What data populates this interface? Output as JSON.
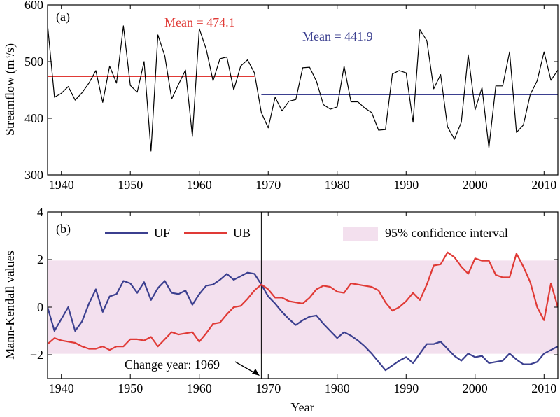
{
  "colors": {
    "series_black": "#000000",
    "red": "#e03a36",
    "blue": "#3b3f8f",
    "confidence": "#f3e0ee"
  },
  "chart_data": [
    {
      "panel_label": "(a)",
      "type": "line",
      "ylabel": "Streamflow (m³/s)",
      "xlim": [
        1938,
        2012
      ],
      "ylim": [
        300,
        600
      ],
      "xticks": [
        1940,
        1950,
        1960,
        1970,
        1980,
        1990,
        2000,
        2010
      ],
      "yticks": [
        300,
        400,
        500,
        600
      ],
      "series": [
        {
          "name": "",
          "color": "#000000",
          "x": [
            1938,
            1939,
            1940,
            1941,
            1942,
            1943,
            1944,
            1945,
            1946,
            1947,
            1948,
            1949,
            1950,
            1951,
            1952,
            1953,
            1954,
            1955,
            1956,
            1957,
            1958,
            1959,
            1960,
            1961,
            1962,
            1963,
            1964,
            1965,
            1966,
            1967,
            1968,
            1969,
            1970,
            1971,
            1972,
            1973,
            1974,
            1975,
            1976,
            1977,
            1978,
            1979,
            1980,
            1981,
            1982,
            1983,
            1984,
            1985,
            1986,
            1987,
            1988,
            1989,
            1990,
            1991,
            1992,
            1993,
            1994,
            1995,
            1996,
            1997,
            1998,
            1999,
            2000,
            2001,
            2002,
            2003,
            2004,
            2005,
            2006,
            2007,
            2008,
            2009,
            2010,
            2011,
            2012
          ],
          "y": [
            565,
            437,
            444,
            456,
            432,
            445,
            462,
            484,
            428,
            492,
            462,
            563,
            458,
            446,
            500,
            342,
            547,
            510,
            434,
            460,
            485,
            368,
            558,
            522,
            466,
            505,
            508,
            450,
            492,
            503,
            480,
            410,
            383,
            437,
            413,
            430,
            433,
            489,
            490,
            465,
            424,
            416,
            420,
            492,
            429,
            429,
            418,
            410,
            379,
            380,
            478,
            484,
            480,
            393,
            556,
            537,
            452,
            477,
            385,
            363,
            393,
            512,
            415,
            454,
            348,
            457,
            457,
            517,
            375,
            388,
            442,
            466,
            517,
            467,
            485
          ]
        }
      ],
      "mean_lines": [
        {
          "label": "Mean = 474.1",
          "value": 474.1,
          "x_start": 1938,
          "x_end": 1968,
          "color": "#e03a36"
        },
        {
          "label": "Mean = 441.9",
          "value": 441.9,
          "x_start": 1969,
          "x_end": 2012,
          "color": "#3b3f8f"
        }
      ]
    },
    {
      "panel_label": "(b)",
      "type": "line",
      "xlabel": "Year",
      "ylabel": "Mann-Kendall values",
      "xlim": [
        1938,
        2012
      ],
      "ylim": [
        -3,
        4
      ],
      "xticks": [
        1940,
        1950,
        1960,
        1970,
        1980,
        1990,
        2000,
        2010
      ],
      "ytick_labels": [
        "−2",
        "0",
        "2",
        "4"
      ],
      "yticks": [
        -2,
        0,
        2,
        4
      ],
      "confidence_band": {
        "label": "95% confidence interval",
        "lower": -1.96,
        "upper": 1.96
      },
      "annotation": {
        "text": "Change year: 1969",
        "x": 1969
      },
      "legend": "top",
      "series": [
        {
          "name": "UF",
          "color": "#3b3f8f",
          "x": [
            1938,
            1939,
            1940,
            1941,
            1942,
            1943,
            1944,
            1945,
            1946,
            1947,
            1948,
            1949,
            1950,
            1951,
            1952,
            1953,
            1954,
            1955,
            1956,
            1957,
            1958,
            1959,
            1960,
            1961,
            1962,
            1963,
            1964,
            1965,
            1966,
            1967,
            1968,
            1969,
            1970,
            1971,
            1972,
            1973,
            1974,
            1975,
            1976,
            1977,
            1978,
            1979,
            1980,
            1981,
            1982,
            1983,
            1984,
            1985,
            1986,
            1987,
            1988,
            1989,
            1990,
            1991,
            1992,
            1993,
            1994,
            1995,
            1996,
            1997,
            1998,
            1999,
            2000,
            2001,
            2002,
            2003,
            2004,
            2005,
            2006,
            2007,
            2008,
            2009,
            2010,
            2011,
            2012
          ],
          "y": [
            0.0,
            -1.0,
            -0.5,
            0.0,
            -1.0,
            -0.6,
            0.15,
            0.75,
            -0.2,
            0.45,
            0.55,
            1.1,
            1.0,
            0.6,
            1.05,
            0.3,
            0.8,
            1.1,
            0.6,
            0.55,
            0.7,
            0.1,
            0.55,
            0.9,
            0.95,
            1.15,
            1.4,
            1.15,
            1.3,
            1.45,
            1.4,
            0.95,
            0.45,
            0.15,
            -0.2,
            -0.5,
            -0.75,
            -0.55,
            -0.4,
            -0.35,
            -0.7,
            -1.0,
            -1.3,
            -1.05,
            -1.2,
            -1.4,
            -1.65,
            -1.95,
            -2.3,
            -2.65,
            -2.45,
            -2.25,
            -2.1,
            -2.35,
            -1.95,
            -1.55,
            -1.55,
            -1.45,
            -1.75,
            -2.05,
            -2.25,
            -1.95,
            -2.1,
            -2.05,
            -2.35,
            -2.3,
            -2.25,
            -1.95,
            -2.2,
            -2.4,
            -2.4,
            -2.3,
            -1.95,
            -1.8,
            -1.65
          ]
        },
        {
          "name": "UB",
          "color": "#e03a36",
          "x": [
            1938,
            1939,
            1940,
            1941,
            1942,
            1943,
            1944,
            1945,
            1946,
            1947,
            1948,
            1949,
            1950,
            1951,
            1952,
            1953,
            1954,
            1955,
            1956,
            1957,
            1958,
            1959,
            1960,
            1961,
            1962,
            1963,
            1964,
            1965,
            1966,
            1967,
            1968,
            1969,
            1970,
            1971,
            1972,
            1973,
            1974,
            1975,
            1976,
            1977,
            1978,
            1979,
            1980,
            1981,
            1982,
            1983,
            1984,
            1985,
            1986,
            1987,
            1988,
            1989,
            1990,
            1991,
            1992,
            1993,
            1994,
            1995,
            1996,
            1997,
            1998,
            1999,
            2000,
            2001,
            2002,
            2003,
            2004,
            2005,
            2006,
            2007,
            2008,
            2009,
            2010,
            2011,
            2012
          ],
          "y": [
            -1.55,
            -1.3,
            -1.4,
            -1.45,
            -1.5,
            -1.65,
            -1.75,
            -1.75,
            -1.65,
            -1.8,
            -1.65,
            -1.65,
            -1.35,
            -1.35,
            -1.4,
            -1.25,
            -1.65,
            -1.35,
            -1.05,
            -1.15,
            -1.1,
            -1.05,
            -1.45,
            -1.1,
            -0.7,
            -0.65,
            -0.3,
            0.0,
            0.05,
            0.35,
            0.7,
            0.95,
            0.75,
            0.4,
            0.4,
            0.25,
            0.2,
            0.15,
            0.4,
            0.75,
            0.9,
            0.85,
            0.65,
            0.6,
            1.0,
            0.95,
            0.9,
            0.85,
            0.7,
            0.2,
            -0.15,
            0.0,
            0.25,
            0.6,
            0.3,
            0.95,
            1.75,
            1.8,
            2.3,
            2.1,
            1.7,
            1.4,
            2.05,
            1.95,
            1.95,
            1.35,
            1.25,
            1.25,
            2.25,
            1.7,
            1.05,
            0.0,
            -0.55,
            1.0,
            0.0
          ]
        }
      ]
    }
  ]
}
